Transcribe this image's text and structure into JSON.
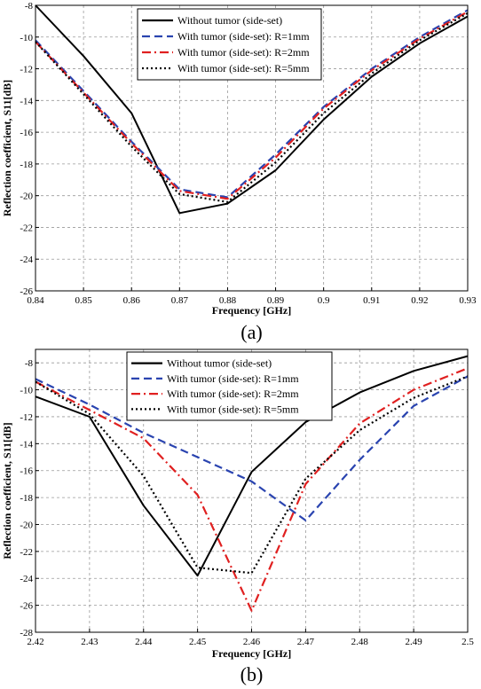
{
  "chart_data": [
    {
      "type": "line",
      "panel_label": "(a)",
      "xlabel": "Frequency [GHz]",
      "ylabel": "Reflection coefficient, S11[dB]",
      "xlim": [
        0.84,
        0.93
      ],
      "ylim": [
        -26,
        -8
      ],
      "xticks": [
        "0.84",
        "0.85",
        "0.86",
        "0.87",
        "0.88",
        "0.89",
        "0.9",
        "0.91",
        "0.92",
        "0.93"
      ],
      "yticks": [
        "-8",
        "-10",
        "-12",
        "-14",
        "-16",
        "-18",
        "-20",
        "-22",
        "-24",
        "-26"
      ],
      "grid": true,
      "legend_position": "top-right",
      "series": [
        {
          "name": "Without tumor (side-set)",
          "color": "#000000",
          "dash": "solid",
          "x": [
            0.84,
            0.85,
            0.86,
            0.87,
            0.88,
            0.89,
            0.9,
            0.91,
            0.92,
            0.93
          ],
          "y": [
            -8.0,
            -11.2,
            -14.8,
            -21.1,
            -20.5,
            -18.4,
            -15.2,
            -12.5,
            -10.4,
            -8.7
          ]
        },
        {
          "name": "With tumor (side-set): R=1mm",
          "color": "#2a44b0",
          "dash": "dashed",
          "x": [
            0.84,
            0.85,
            0.86,
            0.87,
            0.88,
            0.89,
            0.9,
            0.91,
            0.92,
            0.93
          ],
          "y": [
            -10.2,
            -13.4,
            -16.6,
            -19.6,
            -20.1,
            -17.4,
            -14.4,
            -12.0,
            -10.0,
            -8.3
          ]
        },
        {
          "name": "With tumor (side-set): R=2mm",
          "color": "#e02020",
          "dash": "dashdot",
          "x": [
            0.84,
            0.85,
            0.86,
            0.87,
            0.88,
            0.89,
            0.9,
            0.91,
            0.92,
            0.93
          ],
          "y": [
            -10.3,
            -13.5,
            -16.7,
            -19.7,
            -20.2,
            -17.6,
            -14.5,
            -12.1,
            -10.1,
            -8.4
          ]
        },
        {
          "name": "With tumor (side-set): R=5mm",
          "color": "#000000",
          "dash": "dotted",
          "x": [
            0.84,
            0.85,
            0.86,
            0.87,
            0.88,
            0.89,
            0.9,
            0.91,
            0.92,
            0.93
          ],
          "y": [
            -10.3,
            -13.6,
            -16.9,
            -19.9,
            -20.4,
            -17.9,
            -14.8,
            -12.3,
            -10.2,
            -8.5
          ]
        }
      ]
    },
    {
      "type": "line",
      "panel_label": "(b)",
      "xlabel": "Frequency [GHz]",
      "ylabel": "Reflection coefficient, S11[dB]",
      "xlim": [
        2.42,
        2.5
      ],
      "ylim": [
        -28,
        -7
      ],
      "xticks": [
        "2.42",
        "2.43",
        "2.44",
        "2.45",
        "2.46",
        "2.47",
        "2.48",
        "2.49",
        "2.5"
      ],
      "yticks": [
        "-8",
        "-10",
        "-12",
        "-14",
        "-16",
        "-18",
        "-20",
        "-22",
        "-24",
        "-26",
        "-28"
      ],
      "grid": true,
      "legend_position": "top-right",
      "series": [
        {
          "name": "Without tumor (side-set)",
          "color": "#000000",
          "dash": "solid",
          "x": [
            2.42,
            2.43,
            2.44,
            2.45,
            2.46,
            2.47,
            2.48,
            2.49,
            2.5
          ],
          "y": [
            -10.5,
            -12.0,
            -18.6,
            -23.8,
            -16.1,
            -12.4,
            -10.2,
            -8.6,
            -7.5
          ]
        },
        {
          "name": "With tumor (side-set): R=1mm",
          "color": "#2a44b0",
          "dash": "dashed",
          "x": [
            2.42,
            2.43,
            2.44,
            2.45,
            2.46,
            2.47,
            2.48,
            2.49,
            2.5
          ],
          "y": [
            -9.2,
            -11.1,
            -13.2,
            -15.0,
            -16.8,
            -19.7,
            -15.2,
            -11.2,
            -9.0
          ]
        },
        {
          "name": "With tumor (side-set): R=2mm",
          "color": "#e02020",
          "dash": "dashdot",
          "x": [
            2.42,
            2.43,
            2.44,
            2.45,
            2.46,
            2.47,
            2.48,
            2.49,
            2.5
          ],
          "y": [
            -9.4,
            -11.5,
            -13.6,
            -17.8,
            -26.4,
            -17.0,
            -12.5,
            -10.0,
            -8.4
          ]
        },
        {
          "name": "With tumor (side-set): R=5mm",
          "color": "#000000",
          "dash": "dotted",
          "x": [
            2.42,
            2.43,
            2.44,
            2.45,
            2.46,
            2.47,
            2.48,
            2.49,
            2.5
          ],
          "y": [
            -9.4,
            -11.8,
            -16.4,
            -23.2,
            -23.6,
            -16.6,
            -13.0,
            -10.6,
            -9.0
          ]
        }
      ]
    }
  ]
}
